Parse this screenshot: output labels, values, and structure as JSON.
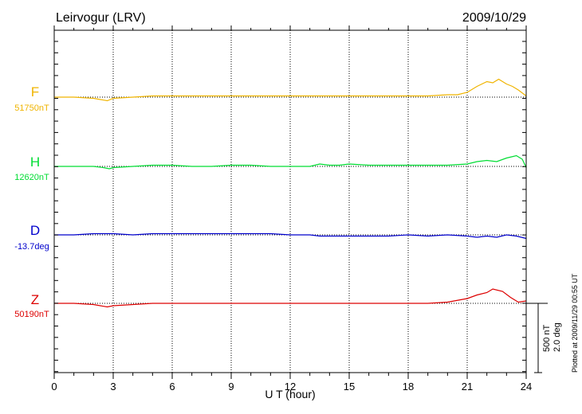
{
  "chart_data": {
    "type": "line",
    "title": "Leirvogur (LRV)",
    "date": "2009/10/29",
    "xlabel": "U T (hour)",
    "xlim": [
      0,
      24
    ],
    "xticks": [
      0,
      3,
      6,
      9,
      12,
      15,
      18,
      21,
      24
    ],
    "grid": "vertical dotted every 3 hours",
    "scale_bar": {
      "nT": "500 nT",
      "deg": "2.0 deg"
    },
    "plotted_note": "Plotted at 2009/11/29 00:55 UT",
    "series": [
      {
        "name": "F",
        "baseline": "51750nT",
        "color": "#f0b400",
        "x": [
          0,
          1,
          2,
          2.7,
          3,
          4,
          5,
          6,
          7,
          8,
          9,
          10,
          11,
          12,
          13,
          14,
          15,
          16,
          17,
          18,
          19,
          20,
          20.5,
          21,
          21.5,
          22,
          22.3,
          22.6,
          23,
          23.3,
          23.6,
          24
        ],
        "y": [
          0,
          0,
          -1,
          -3,
          -1,
          0,
          1,
          1,
          1,
          1,
          1,
          1,
          1,
          1,
          1,
          1,
          1,
          1,
          1,
          1,
          1,
          2,
          2,
          4,
          9,
          13,
          12,
          15,
          11,
          9,
          6,
          1
        ]
      },
      {
        "name": "H",
        "baseline": "12620nT",
        "color": "#00dd33",
        "x": [
          0,
          1,
          2,
          2.5,
          2.8,
          3,
          4,
          5,
          6,
          7,
          8,
          9,
          10,
          11,
          12,
          13,
          13.5,
          14,
          14.5,
          15,
          16,
          17,
          18,
          19,
          20,
          21,
          21.5,
          22,
          22.5,
          23,
          23.5,
          23.8,
          24
        ],
        "y": [
          0,
          0,
          0,
          -1,
          -2,
          -1,
          0,
          1,
          1,
          0,
          0,
          1,
          1,
          0,
          0,
          0,
          2,
          1,
          1,
          2,
          1,
          1,
          1,
          1,
          1,
          2,
          4,
          5,
          4,
          7,
          9,
          6,
          -1
        ]
      },
      {
        "name": "D",
        "baseline": "-13.7deg",
        "color": "#0000cc",
        "x": [
          0,
          1,
          2,
          3,
          4,
          5,
          6,
          7,
          8,
          9,
          10,
          11,
          12,
          13,
          13.5,
          14,
          15,
          16,
          17,
          18,
          19,
          20,
          21,
          21.5,
          22,
          22.5,
          23,
          23.5,
          24
        ],
        "y": [
          0,
          0,
          1,
          1,
          0,
          1,
          1,
          1,
          1,
          1,
          1,
          1,
          0,
          0,
          -1,
          -1,
          -1,
          -1,
          -1,
          0,
          -1,
          0,
          -1,
          -2,
          -1,
          -2,
          0,
          -1,
          -3
        ]
      },
      {
        "name": "Z",
        "baseline": "50190nT",
        "color": "#dd0000",
        "x": [
          0,
          1,
          2,
          2.7,
          3,
          4,
          5,
          6,
          7,
          8,
          9,
          10,
          11,
          12,
          13,
          14,
          15,
          16,
          17,
          18,
          19,
          20,
          21,
          21.5,
          22,
          22.3,
          22.8,
          23.2,
          23.6,
          24
        ],
        "y": [
          0,
          0,
          -1,
          -3,
          -2,
          -1,
          0,
          0,
          0,
          0,
          0,
          0,
          0,
          0,
          0,
          0,
          0,
          0,
          0,
          0,
          0,
          1,
          4,
          7,
          9,
          12,
          10,
          5,
          1,
          2
        ]
      }
    ]
  }
}
